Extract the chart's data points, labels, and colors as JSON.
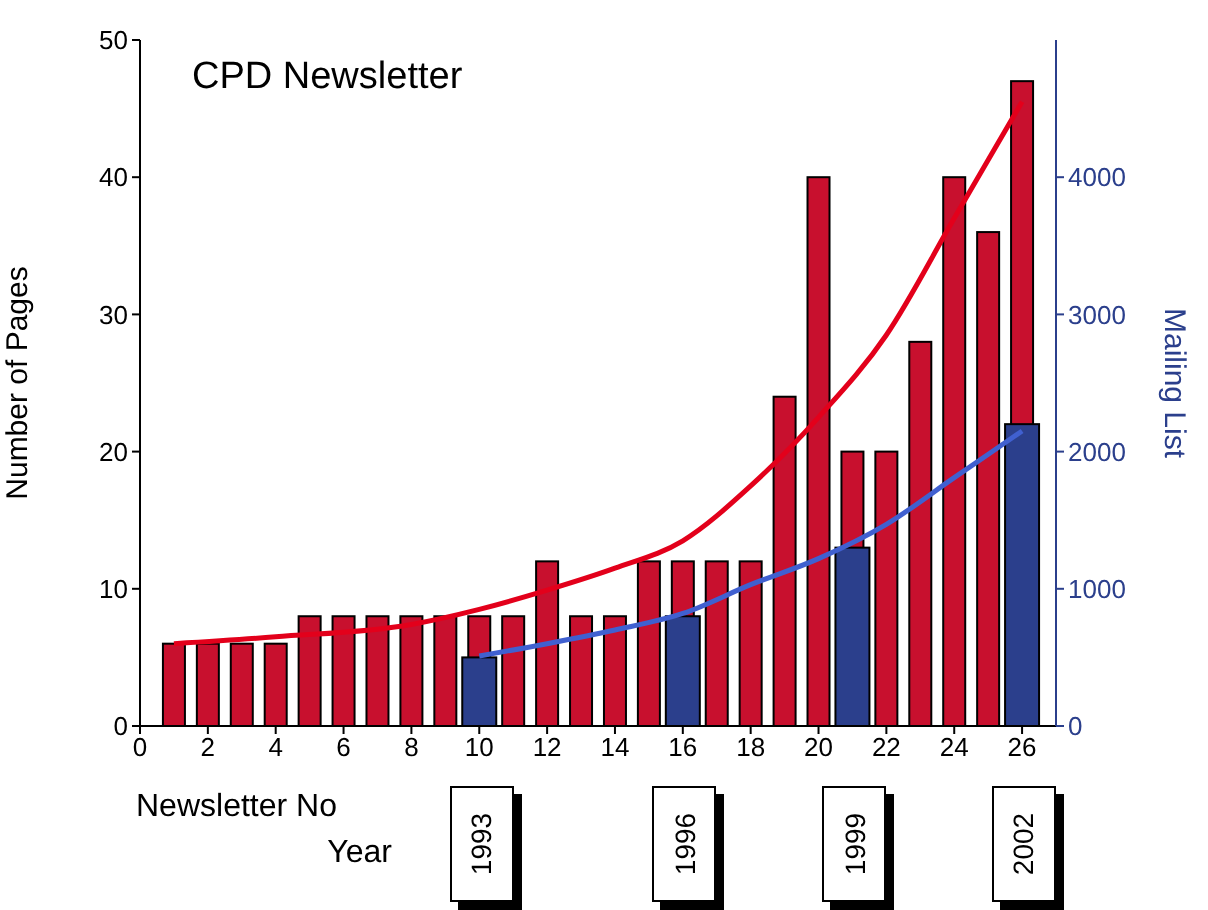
{
  "chart_data": {
    "type": "bar",
    "title": "CPD Newsletter",
    "xlabel": "Newsletter No",
    "ylabel": "Number of Pages",
    "y2label": "Mailing List",
    "x": [
      1,
      2,
      3,
      4,
      5,
      6,
      7,
      8,
      9,
      10,
      11,
      12,
      13,
      14,
      15,
      16,
      17,
      18,
      19,
      20,
      21,
      22,
      23,
      24,
      25,
      26
    ],
    "series": [
      {
        "color": "#c8102e",
        "values": [
          6,
          6,
          6,
          6,
          8,
          8,
          8,
          8,
          8,
          8,
          8,
          12,
          8,
          8,
          12,
          12,
          12,
          12,
          24,
          40,
          20,
          20,
          28,
          40,
          36,
          47
        ]
      },
      {
        "axis": "y2",
        "color": "#2b3f8c",
        "x": [
          10,
          16,
          21,
          26
        ],
        "values": [
          500,
          800,
          1300,
          2200
        ]
      },
      {
        "type": "line",
        "color": "#e3001b",
        "x": [
          1,
          4,
          8,
          10,
          12,
          14,
          16,
          18,
          20,
          22,
          24,
          26
        ],
        "values": [
          6,
          6.5,
          7.4,
          8.5,
          9.9,
          11.5,
          13.5,
          17.5,
          22.5,
          28.5,
          37,
          45.5
        ]
      },
      {
        "type": "line",
        "axis": "y2",
        "color": "#4060d0",
        "x": [
          10,
          12,
          14,
          16,
          18,
          20,
          22,
          24,
          26
        ],
        "values": [
          510,
          600,
          700,
          820,
          1030,
          1220,
          1470,
          1810,
          2150
        ]
      }
    ],
    "xlim": [
      0,
      27
    ],
    "xticks": [
      0,
      2,
      4,
      6,
      8,
      10,
      12,
      14,
      16,
      18,
      20,
      22,
      24,
      26
    ],
    "ylim": [
      0,
      50
    ],
    "yticks": [
      0,
      10,
      20,
      30,
      40,
      50
    ],
    "y2lim": [
      0,
      5000
    ],
    "y2ticks": [
      0,
      1000,
      2000,
      3000,
      4000
    ],
    "annotations": [
      "Year",
      "1993",
      "1996",
      "1999",
      "2002"
    ],
    "grid": false,
    "legend": false,
    "marker": "none",
    "line_style": "solid"
  }
}
